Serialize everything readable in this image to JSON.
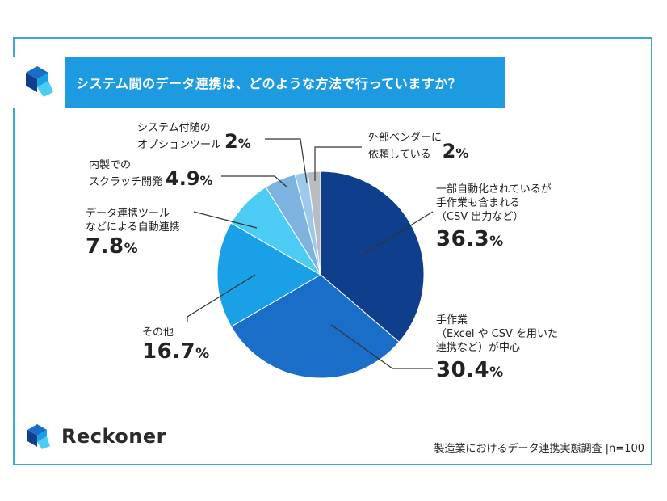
{
  "title": "システム間のデータ連携は、どのような方法で行っていますか？",
  "brand": {
    "name": "Reckoner",
    "logo_icon": "reckoner-logo-icon"
  },
  "footer": "製造業におけるデータ連携実態調査 |n=100",
  "chart_data": {
    "type": "pie",
    "start": "12 o'clock, clockwise",
    "slices": [
      {
        "label": "一部自動化されているが\n手作業も含まれる\n（CSV 出力など）",
        "value": 36.3,
        "display": "36.3",
        "color": "#0f3f8c"
      },
      {
        "label": "手作業\n（Excel や CSV を用いた\n連携など）が中心",
        "value": 30.4,
        "display": "30.4",
        "color": "#1b6ec8"
      },
      {
        "label": "その他",
        "value": 16.7,
        "display": "16.7",
        "color": "#1aa0e6"
      },
      {
        "label": "データ連携ツール\nなどによる自動連携",
        "value": 7.8,
        "display": "7.8",
        "color": "#4ccbf5"
      },
      {
        "label": "内製での\nスクラッチ開発",
        "value": 4.9,
        "display": "4.9",
        "color": "#7fb3df"
      },
      {
        "label": "システム付随の\nオプションツール",
        "value": 2,
        "display": "2",
        "color": "#9cc9ec"
      },
      {
        "label": "外部ベンダーに\n依頼している",
        "value": 2,
        "display": "2",
        "color": "#b9bcc0"
      }
    ],
    "unit": "%"
  }
}
